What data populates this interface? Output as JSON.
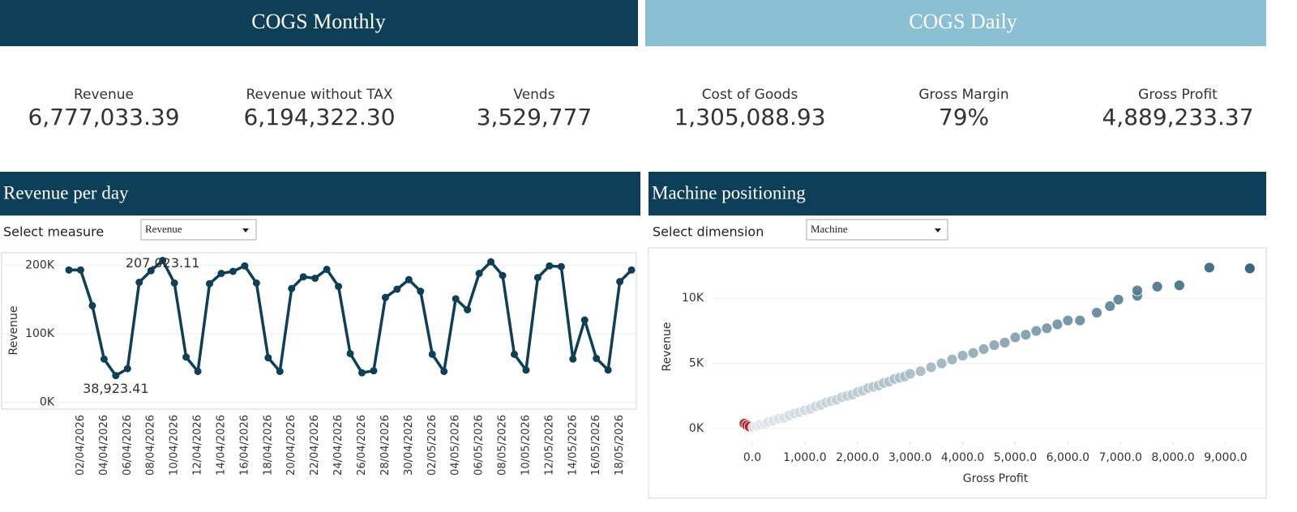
{
  "tabs": [
    "COGS Monthly",
    "COGS Daily"
  ],
  "kpis": [
    {
      "label": "Revenue",
      "value": "6,777,033.39"
    },
    {
      "label": "Revenue without TAX",
      "value": "6,194,322.30"
    },
    {
      "label": "Vends",
      "value": "3,529,777"
    },
    {
      "label": "Cost of Goods",
      "value": "1,305,088.93"
    },
    {
      "label": "Gross Margin",
      "value": "79%"
    },
    {
      "label": "Gross Profit",
      "value": "4,889,233.37"
    }
  ],
  "chart_data": [
    {
      "type": "line",
      "title": "Revenue per day",
      "control_label": "Select measure",
      "control_value": "Revenue",
      "y_label": "Revenue",
      "color": "#0d3f58",
      "categories": [
        null,
        "02/04/2026",
        null,
        "04/04/2026",
        null,
        "06/04/2026",
        null,
        "08/04/2026",
        null,
        "10/04/2026",
        null,
        "12/04/2026",
        null,
        "14/04/2026",
        null,
        "16/04/2026",
        null,
        "18/04/2026",
        null,
        "20/04/2026",
        null,
        "22/04/2026",
        null,
        "24/04/2026",
        null,
        "26/04/2026",
        null,
        "28/04/2026",
        null,
        "30/04/2026",
        null,
        "02/05/2026",
        null,
        "04/05/2026",
        null,
        "06/05/2026",
        null,
        "08/05/2026",
        null,
        "10/05/2026",
        null,
        "12/05/2026",
        null,
        "14/05/2026",
        null,
        "16/05/2026",
        null,
        "18/05/2026",
        null
      ],
      "values": [
        193000,
        193000,
        141000,
        63000,
        38923.41,
        49000,
        175000,
        192000,
        207023.11,
        174000,
        66000,
        45000,
        173000,
        188000,
        191000,
        199000,
        174000,
        65000,
        45000,
        166000,
        183000,
        181000,
        194000,
        169000,
        71000,
        43000,
        46000,
        153000,
        165000,
        179000,
        162000,
        70000,
        45000,
        151000,
        135000,
        188000,
        205000,
        185000,
        70000,
        47000,
        182000,
        199000,
        198000,
        63000,
        120000,
        64000,
        47000,
        176000,
        193000
      ],
      "value_labels": [
        null,
        null,
        null,
        null,
        "38,923.41",
        null,
        null,
        null,
        "207,023.11",
        null,
        null,
        null,
        null,
        null,
        null,
        null,
        null,
        null,
        null,
        null,
        null,
        null,
        null,
        null,
        null,
        null,
        null,
        null,
        null,
        null,
        null,
        null,
        null,
        null,
        null,
        null,
        null,
        null,
        null,
        null,
        null,
        null,
        null,
        null,
        null,
        null,
        null,
        null,
        null
      ],
      "ylim": [
        -10000,
        217000
      ],
      "yticks": [
        {
          "value": 0,
          "label": "0K"
        },
        {
          "value": 100000,
          "label": "100K"
        },
        {
          "value": 200000,
          "label": "200K"
        }
      ],
      "grid": true
    },
    {
      "type": "scatter",
      "title": "Machine positioning",
      "control_label": "Select dimension",
      "control_value": "Machine",
      "x_label": "Gross Profit",
      "y_label": "Revenue",
      "colors": {
        "low": "#e3e9ec",
        "high": "#1d5670",
        "negative": "#b3262a"
      },
      "x": [
        -150,
        -100,
        -50,
        20,
        80,
        150,
        250,
        300,
        400,
        500,
        600,
        700,
        800,
        900,
        1000,
        1100,
        1200,
        1300,
        1400,
        1500,
        1600,
        1700,
        1800,
        1900,
        2000,
        2100,
        2200,
        2300,
        2400,
        2500,
        2600,
        2700,
        2800,
        2900,
        3000,
        3200,
        3400,
        3600,
        3800,
        4000,
        4200,
        4400,
        4600,
        4800,
        5000,
        5200,
        5400,
        5600,
        5800,
        6000,
        6230,
        6550,
        6800,
        6960,
        7320,
        7320,
        7700,
        8120,
        8690,
        9460
      ],
      "values": [
        380,
        250,
        150,
        100,
        200,
        300,
        350,
        500,
        600,
        750,
        800,
        1000,
        1150,
        1250,
        1400,
        1500,
        1700,
        1800,
        2000,
        2100,
        2200,
        2400,
        2500,
        2600,
        2800,
        2900,
        3100,
        3200,
        3300,
        3500,
        3600,
        3800,
        3900,
        4000,
        4200,
        4400,
        4700,
        5000,
        5300,
        5600,
        5800,
        6100,
        6400,
        6600,
        7000,
        7200,
        7500,
        7700,
        8000,
        8300,
        8300,
        8900,
        9400,
        9900,
        10200,
        10600,
        10900,
        11000,
        12360,
        12300
      ],
      "xlim": [
        -740,
        9740
      ],
      "ylim": [
        -1000,
        13500
      ],
      "xticks": [
        {
          "value": 0,
          "label": "0.0"
        },
        {
          "value": 1000,
          "label": "1,000.0"
        },
        {
          "value": 2000,
          "label": "2,000.0"
        },
        {
          "value": 3000,
          "label": "3,000.0"
        },
        {
          "value": 4000,
          "label": "4,000.0"
        },
        {
          "value": 5000,
          "label": "5,000.0"
        },
        {
          "value": 6000,
          "label": "6,000.0"
        },
        {
          "value": 7000,
          "label": "7,000.0"
        },
        {
          "value": 8000,
          "label": "8,000.0"
        },
        {
          "value": 9000,
          "label": "9,000.0"
        }
      ],
      "yticks": [
        {
          "value": 0,
          "label": "0K"
        },
        {
          "value": 5000,
          "label": "5K"
        },
        {
          "value": 10000,
          "label": "10K"
        }
      ],
      "grid": true
    }
  ]
}
